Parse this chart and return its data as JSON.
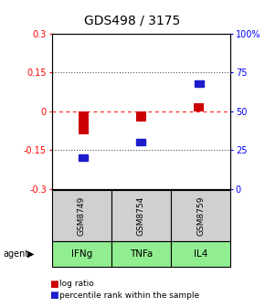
{
  "title": "GDS498 / 3175",
  "samples": [
    "GSM8749",
    "GSM8754",
    "GSM8759"
  ],
  "agents": [
    "IFNg",
    "TNFa",
    "IL4"
  ],
  "log_ratios": [
    -0.09,
    -0.04,
    0.03
  ],
  "percentile_ranks": [
    20,
    30,
    68
  ],
  "ylim_left": [
    -0.3,
    0.3
  ],
  "ylim_right": [
    0,
    100
  ],
  "yticks_left": [
    -0.3,
    -0.15,
    0,
    0.15,
    0.3
  ],
  "ytick_labels_left": [
    "-0.3",
    "-0.15",
    "0",
    "0.15",
    "0.3"
  ],
  "yticks_right": [
    0,
    25,
    50,
    75,
    100
  ],
  "ytick_labels_right": [
    "0",
    "25",
    "50",
    "75",
    "100%"
  ],
  "bar_color_red": "#cc0000",
  "bar_color_blue": "#1c1ccc",
  "agent_bg_color": "#90ee90",
  "sample_bg_color": "#d0d0d0",
  "x_positions": [
    0,
    1,
    2
  ]
}
